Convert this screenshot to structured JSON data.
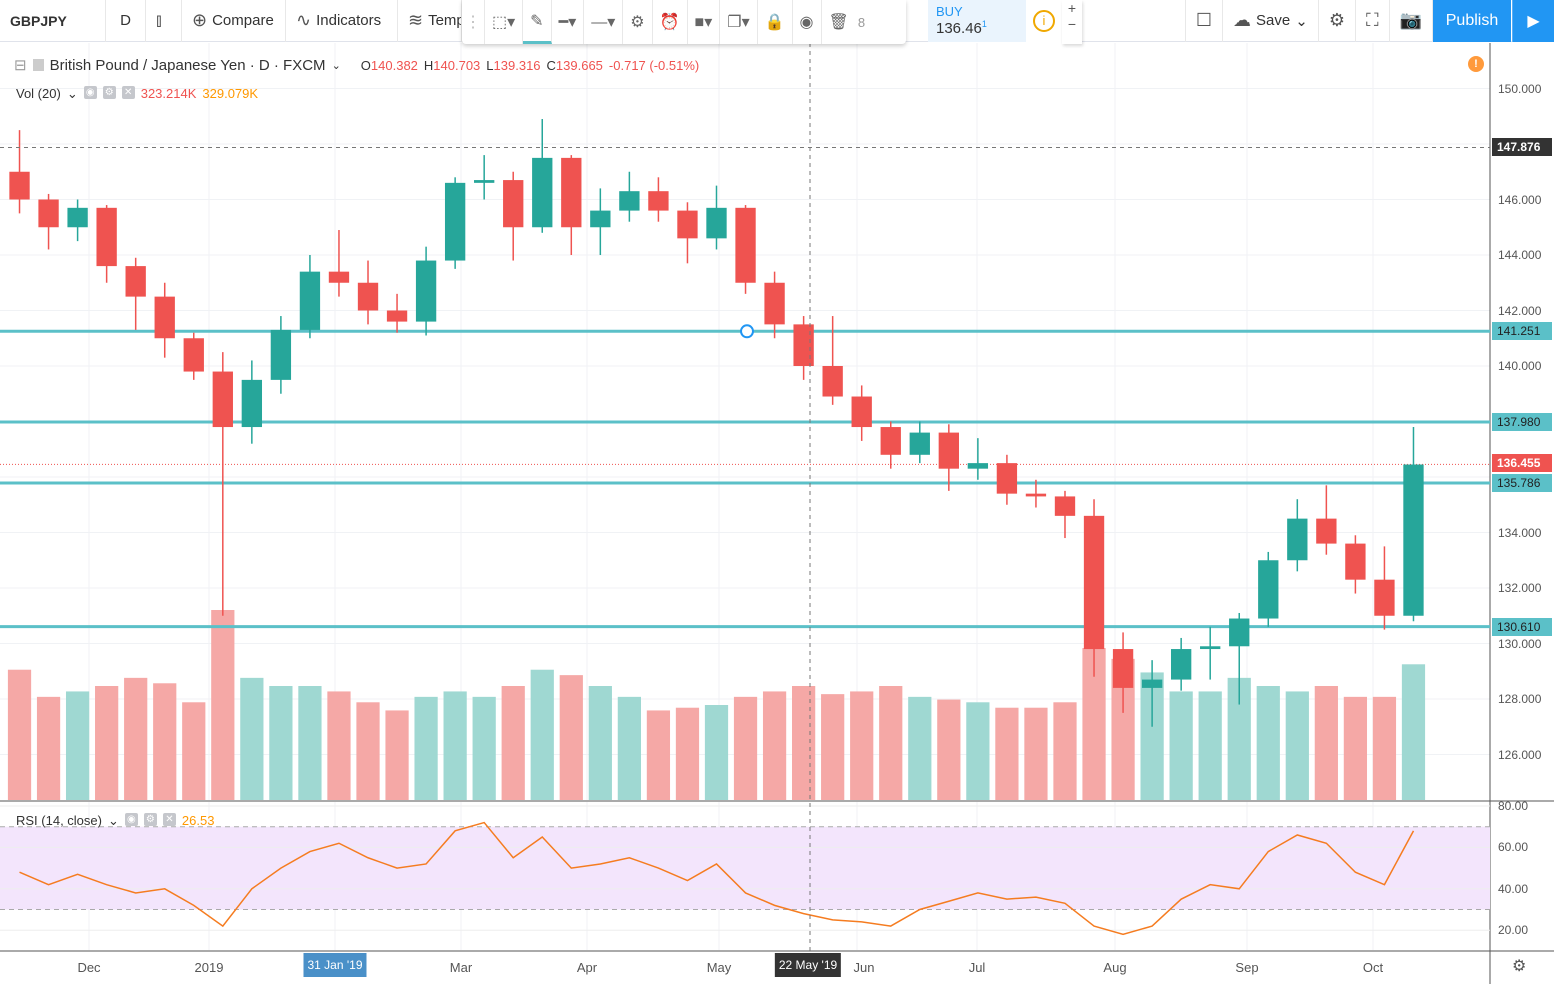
{
  "toolbar": {
    "symbol": "GBPJPY",
    "interval": "D",
    "compare": "Compare",
    "indicators": "Indicators",
    "templates": "Templ",
    "save": "Save",
    "publish": "Publish",
    "buy_label": "BUY",
    "buy_price": "136.46",
    "buy_sup": "1",
    "drawbar_fragment": "8"
  },
  "legend": {
    "title": "British Pound / Japanese Yen · D · FXCM",
    "o_label": "O",
    "o": "140.382",
    "h_label": "H",
    "h": "140.703",
    "l_label": "L",
    "l": "139.316",
    "c_label": "C",
    "c": "139.665",
    "change": "-0.717 (-0.51%)"
  },
  "volume_legend": {
    "label": "Vol (20)",
    "v1": "323.214K",
    "v2": "329.079K"
  },
  "rsi_legend": {
    "label": "RSI (14, close)",
    "value": "26.53"
  },
  "crosshair": {
    "price": "147.876",
    "date": "22 May '19"
  },
  "highlight_date": "31 Jan '19",
  "colors": {
    "up": "#26a69a",
    "down": "#ef5350",
    "hline": "#5bc0c8",
    "rsi": "#f57c20",
    "rsi_band": "#f3e5fc",
    "accent": "#2196f3"
  },
  "chart_data": {
    "type": "candlestick",
    "note_values": "weekly approximation of daily candles",
    "price_axis": {
      "range": [
        124.5,
        151.5
      ],
      "ticks": [
        "150.000",
        "146.000",
        "144.000",
        "142.000",
        "140.000",
        "134.000",
        "132.000",
        "130.000",
        "128.000",
        "126.000"
      ]
    },
    "rsi_axis": {
      "range": [
        10,
        82
      ],
      "ticks": [
        "80.00",
        "60.00",
        "40.00",
        "20.00"
      ],
      "band": [
        30,
        70
      ]
    },
    "time_ticks": [
      "Dec",
      "2019",
      "Mar",
      "Apr",
      "May",
      "Jun",
      "Jul",
      "Aug",
      "Sep",
      "Oct"
    ],
    "horizontal_lines": [
      "141.251",
      "137.980",
      "135.786",
      "130.610"
    ],
    "last_price": "136.455",
    "candles": [
      [
        "2018-11-12",
        147.0,
        148.5,
        145.5,
        146.0,
        480,
        48
      ],
      [
        "2018-11-19",
        146.0,
        146.2,
        144.2,
        145.0,
        380,
        42
      ],
      [
        "2018-11-26",
        145.0,
        146.0,
        144.5,
        145.7,
        400,
        47
      ],
      [
        "2018-12-03",
        145.7,
        145.8,
        143.0,
        143.6,
        420,
        42
      ],
      [
        "2018-12-10",
        143.6,
        143.9,
        141.3,
        142.5,
        450,
        38
      ],
      [
        "2018-12-17",
        142.5,
        143.0,
        140.3,
        141.0,
        430,
        40
      ],
      [
        "2018-12-24",
        141.0,
        141.2,
        139.5,
        139.8,
        360,
        32
      ],
      [
        "2018-12-31",
        139.8,
        140.5,
        131.0,
        137.8,
        700,
        22
      ],
      [
        "2019-01-07",
        137.8,
        140.2,
        137.2,
        139.5,
        450,
        40
      ],
      [
        "2019-01-14",
        139.5,
        141.8,
        139.0,
        141.3,
        420,
        50
      ],
      [
        "2019-01-21",
        141.3,
        144.0,
        141.0,
        143.4,
        420,
        58
      ],
      [
        "2019-01-28",
        143.4,
        144.9,
        142.5,
        143.0,
        400,
        62
      ],
      [
        "2019-02-04",
        143.0,
        143.8,
        141.5,
        142.0,
        360,
        55
      ],
      [
        "2019-02-11",
        142.0,
        142.6,
        141.2,
        141.6,
        330,
        50
      ],
      [
        "2019-02-18",
        141.6,
        144.3,
        141.1,
        143.8,
        380,
        52
      ],
      [
        "2019-02-25",
        143.8,
        146.8,
        143.5,
        146.6,
        400,
        68
      ],
      [
        "2019-03-04",
        146.6,
        147.6,
        146.0,
        146.7,
        380,
        72
      ],
      [
        "2019-03-11",
        146.7,
        147.0,
        143.8,
        145.0,
        420,
        55
      ],
      [
        "2019-03-18",
        145.0,
        148.9,
        144.8,
        147.5,
        480,
        65
      ],
      [
        "2019-03-25",
        147.5,
        147.6,
        144.0,
        145.0,
        460,
        50
      ],
      [
        "2019-04-01",
        145.0,
        146.4,
        144.0,
        145.6,
        420,
        52
      ],
      [
        "2019-04-08",
        145.6,
        147.0,
        145.2,
        146.3,
        380,
        55
      ],
      [
        "2019-04-15",
        146.3,
        146.8,
        145.2,
        145.6,
        330,
        50
      ],
      [
        "2019-04-22",
        145.6,
        145.9,
        143.7,
        144.6,
        340,
        44
      ],
      [
        "2019-04-29",
        144.6,
        146.5,
        144.2,
        145.7,
        350,
        52
      ],
      [
        "2019-05-06",
        145.7,
        145.8,
        142.6,
        143.0,
        380,
        38
      ],
      [
        "2019-05-13",
        143.0,
        143.4,
        141.0,
        141.5,
        400,
        32
      ],
      [
        "2019-05-20",
        141.5,
        141.8,
        139.5,
        140.0,
        420,
        28
      ],
      [
        "2019-05-27",
        140.0,
        141.8,
        138.6,
        138.9,
        390,
        25
      ],
      [
        "2019-06-03",
        138.9,
        139.3,
        137.3,
        137.8,
        400,
        24
      ],
      [
        "2019-06-10",
        137.8,
        138.0,
        136.3,
        136.8,
        420,
        22
      ],
      [
        "2019-06-17",
        136.8,
        138.0,
        136.5,
        137.6,
        380,
        30
      ],
      [
        "2019-06-24",
        137.6,
        137.9,
        135.5,
        136.3,
        370,
        34
      ],
      [
        "2019-07-01",
        136.3,
        137.4,
        135.9,
        136.5,
        360,
        38
      ],
      [
        "2019-07-08",
        136.5,
        136.8,
        135.0,
        135.4,
        340,
        35
      ],
      [
        "2019-07-15",
        135.4,
        135.9,
        134.9,
        135.3,
        340,
        36
      ],
      [
        "2019-07-22",
        135.3,
        135.5,
        133.8,
        134.6,
        360,
        33
      ],
      [
        "2019-07-29",
        134.6,
        135.2,
        128.8,
        129.8,
        560,
        22
      ],
      [
        "2019-08-05",
        129.8,
        130.4,
        127.5,
        128.4,
        520,
        18
      ],
      [
        "2019-08-12",
        128.4,
        129.4,
        127.0,
        128.7,
        470,
        22
      ],
      [
        "2019-08-19",
        128.7,
        130.2,
        128.3,
        129.8,
        400,
        35
      ],
      [
        "2019-08-26",
        129.8,
        130.6,
        128.7,
        129.9,
        400,
        42
      ],
      [
        "2019-09-02",
        129.9,
        131.1,
        127.8,
        130.9,
        450,
        40
      ],
      [
        "2019-09-09",
        130.9,
        133.3,
        130.6,
        133.0,
        420,
        58
      ],
      [
        "2019-09-16",
        133.0,
        135.2,
        132.6,
        134.5,
        400,
        66
      ],
      [
        "2019-09-23",
        134.5,
        135.7,
        133.2,
        133.6,
        420,
        62
      ],
      [
        "2019-09-30",
        133.6,
        133.9,
        131.8,
        132.3,
        380,
        48
      ],
      [
        "2019-10-07",
        132.3,
        133.5,
        130.5,
        131.0,
        380,
        42
      ],
      [
        "2019-10-14",
        131.0,
        137.8,
        130.8,
        136.45,
        500,
        68
      ]
    ]
  }
}
